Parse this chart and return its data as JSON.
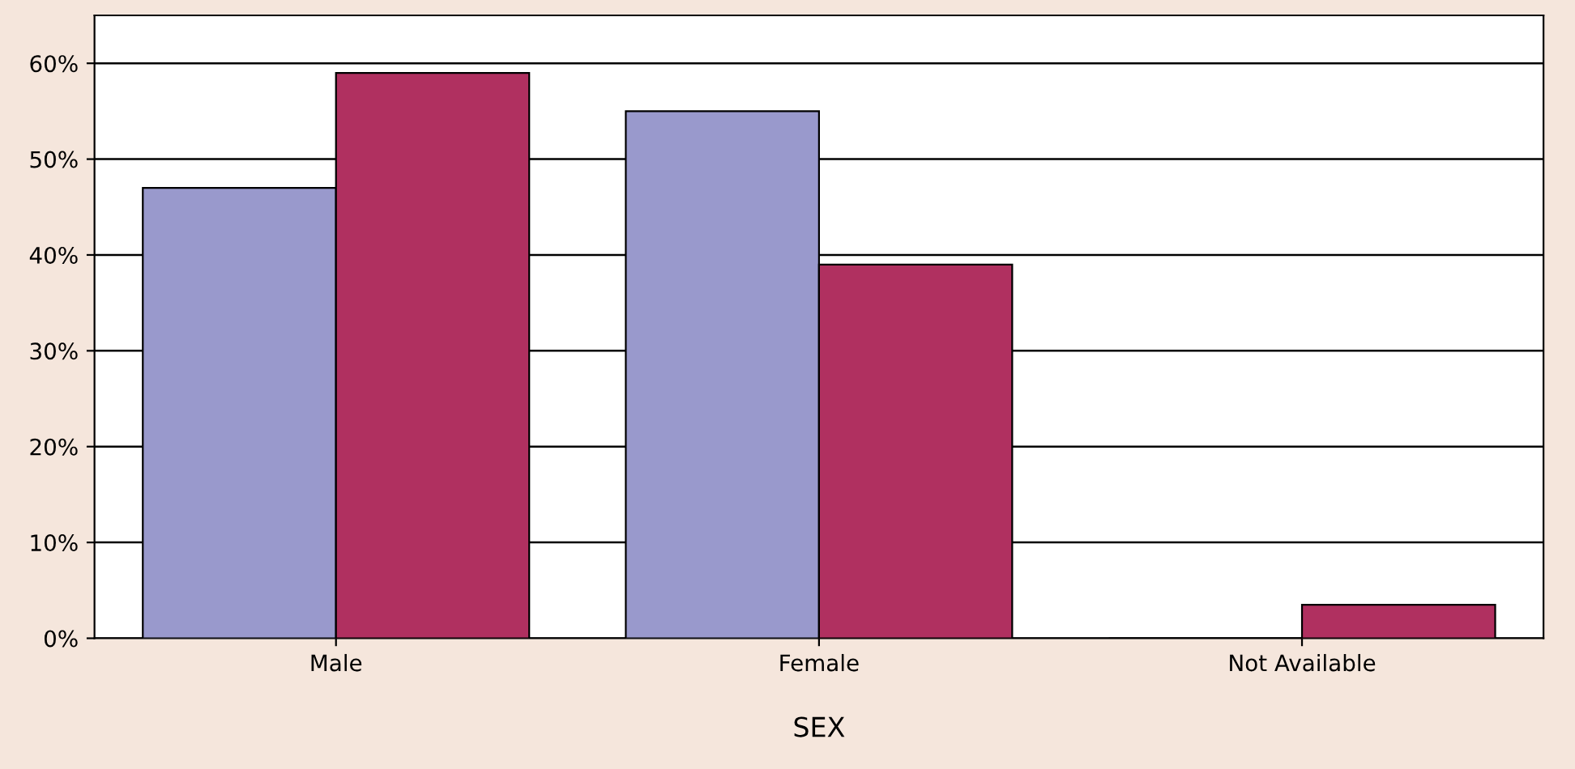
{
  "chart_data": {
    "type": "bar",
    "xlabel": "SEX",
    "categories": [
      "Male",
      "Female",
      "Not Available"
    ],
    "series": [
      {
        "color": "#9999cc",
        "values": [
          47,
          55,
          0
        ]
      },
      {
        "color": "#b03060",
        "values": [
          59,
          39,
          3.5
        ]
      }
    ],
    "ylim": [
      0,
      65
    ],
    "yticks": [
      {
        "value": 0,
        "label": "0%"
      },
      {
        "value": 10,
        "label": "10%"
      },
      {
        "value": 20,
        "label": "20%"
      },
      {
        "value": 30,
        "label": "30%"
      },
      {
        "value": 40,
        "label": "40%"
      },
      {
        "value": 50,
        "label": "50%"
      },
      {
        "value": 60,
        "label": "60%"
      }
    ],
    "grid": "y"
  }
}
